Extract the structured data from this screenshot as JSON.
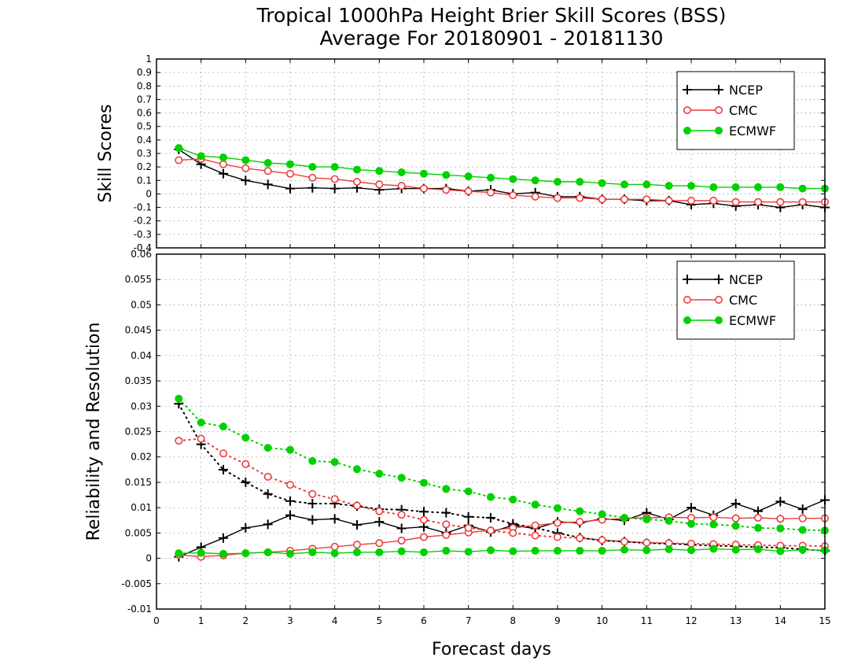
{
  "title_line1": "Tropical 1000hPa Height Brier Skill Scores (BSS)",
  "title_line2": "Average For 20180901 - 20181130",
  "xlabel": "Forecast days",
  "colors": {
    "NCEP": "#000000",
    "CMC": "#ee3b3b",
    "ECMWF": "#00d100"
  },
  "chart_data": [
    {
      "type": "line",
      "ylabel": "Skill Scores",
      "xlim": [
        0,
        15
      ],
      "ylim": [
        -0.4,
        1
      ],
      "x_ticks": [
        0,
        1,
        2,
        3,
        4,
        5,
        6,
        7,
        8,
        9,
        10,
        11,
        12,
        13,
        14,
        15
      ],
      "y_ticks": [
        "-0.4",
        "-0.3",
        "-0.2",
        "-0.1",
        "0",
        "0.1",
        "0.2",
        "0.3",
        "0.4",
        "0.5",
        "0.6",
        "0.7",
        "0.8",
        "0.9",
        "1"
      ],
      "grid": true,
      "legend_position": "top-right",
      "x": [
        0.5,
        1,
        1.5,
        2,
        2.5,
        3,
        3.5,
        4,
        4.5,
        5,
        5.5,
        6,
        6.5,
        7,
        7.5,
        8,
        8.5,
        9,
        9.5,
        10,
        10.5,
        11,
        11.5,
        12,
        12.5,
        13,
        13.5,
        14,
        14.5,
        15
      ],
      "series": [
        {
          "name": "NCEP",
          "marker": "plus",
          "style": "solid",
          "values": [
            0.33,
            0.22,
            0.15,
            0.1,
            0.07,
            0.04,
            0.045,
            0.04,
            0.045,
            0.03,
            0.04,
            0.04,
            0.04,
            0.02,
            0.03,
            0.0,
            0.01,
            -0.02,
            -0.02,
            -0.04,
            -0.04,
            -0.05,
            -0.05,
            -0.08,
            -0.07,
            -0.09,
            -0.08,
            -0.1,
            -0.08,
            -0.1
          ]
        },
        {
          "name": "CMC",
          "marker": "open-circle",
          "style": "solid",
          "values": [
            0.25,
            0.26,
            0.22,
            0.19,
            0.17,
            0.15,
            0.12,
            0.11,
            0.09,
            0.07,
            0.06,
            0.04,
            0.03,
            0.02,
            0.01,
            -0.01,
            -0.02,
            -0.03,
            -0.03,
            -0.04,
            -0.04,
            -0.04,
            -0.05,
            -0.05,
            -0.05,
            -0.06,
            -0.06,
            -0.06,
            -0.06,
            -0.06
          ]
        },
        {
          "name": "ECMWF",
          "marker": "filled-circle",
          "style": "solid",
          "values": [
            0.34,
            0.28,
            0.27,
            0.25,
            0.23,
            0.22,
            0.2,
            0.2,
            0.18,
            0.17,
            0.16,
            0.15,
            0.14,
            0.13,
            0.12,
            0.11,
            0.1,
            0.09,
            0.09,
            0.08,
            0.07,
            0.07,
            0.06,
            0.06,
            0.05,
            0.05,
            0.05,
            0.05,
            0.04,
            0.04
          ]
        }
      ]
    },
    {
      "type": "line",
      "ylabel": "Reliability and Resolution",
      "xlim": [
        0,
        15
      ],
      "ylim": [
        -0.01,
        0.06
      ],
      "x_ticks": [
        0,
        1,
        2,
        3,
        4,
        5,
        6,
        7,
        8,
        9,
        10,
        11,
        12,
        13,
        14,
        15
      ],
      "y_ticks": [
        "-0.01",
        "-0.005",
        "0",
        "0.005",
        "0.01",
        "0.015",
        "0.02",
        "0.025",
        "0.03",
        "0.035",
        "0.04",
        "0.045",
        "0.05",
        "0.055",
        "0.06"
      ],
      "grid": true,
      "legend_position": "top-right",
      "x": [
        0.5,
        1,
        1.5,
        2,
        2.5,
        3,
        3.5,
        4,
        4.5,
        5,
        5.5,
        6,
        6.5,
        7,
        7.5,
        8,
        8.5,
        9,
        9.5,
        10,
        10.5,
        11,
        11.5,
        12,
        12.5,
        13,
        13.5,
        14,
        14.5,
        15
      ],
      "series": [
        {
          "name": "NCEP",
          "marker": "plus",
          "style": "solid",
          "values": [
            0.0003,
            0.0022,
            0.004,
            0.006,
            0.0067,
            0.0085,
            0.0076,
            0.0078,
            0.0066,
            0.0072,
            0.0059,
            0.0062,
            0.005,
            0.0065,
            0.0052,
            0.0065,
            0.0059,
            0.0072,
            0.007,
            0.0078,
            0.0075,
            0.009,
            0.0077,
            0.01,
            0.0085,
            0.0108,
            0.0093,
            0.0112,
            0.0097,
            0.0115
          ]
        },
        {
          "name": "NCEP",
          "marker": "plus",
          "style": "dotted",
          "values": [
            0.0305,
            0.0225,
            0.0175,
            0.015,
            0.0127,
            0.0113,
            0.0108,
            0.0108,
            0.0103,
            0.0097,
            0.0096,
            0.0092,
            0.009,
            0.0082,
            0.008,
            0.0068,
            0.006,
            0.005,
            0.0041,
            0.0035,
            0.0033,
            0.003,
            0.0029,
            0.0027,
            0.0025,
            0.0024,
            0.0022,
            0.0021,
            0.0018,
            0.0015
          ]
        },
        {
          "name": "CMC",
          "marker": "open-circle",
          "style": "solid",
          "values": [
            0.0007,
            0.0003,
            0.0006,
            0.001,
            0.0012,
            0.0015,
            0.0019,
            0.0023,
            0.0027,
            0.003,
            0.0035,
            0.0042,
            0.0046,
            0.0051,
            0.0055,
            0.006,
            0.0065,
            0.007,
            0.0072,
            0.0076,
            0.0079,
            0.008,
            0.0081,
            0.008,
            0.0081,
            0.0079,
            0.008,
            0.0078,
            0.0079,
            0.0079
          ]
        },
        {
          "name": "CMC",
          "marker": "open-circle",
          "style": "dotted",
          "values": [
            0.0232,
            0.0236,
            0.0207,
            0.0186,
            0.0161,
            0.0145,
            0.0127,
            0.0117,
            0.0104,
            0.0093,
            0.0086,
            0.0076,
            0.0067,
            0.006,
            0.0055,
            0.005,
            0.0045,
            0.0042,
            0.004,
            0.0036,
            0.0033,
            0.0031,
            0.003,
            0.0029,
            0.0028,
            0.0027,
            0.0026,
            0.0025,
            0.0025,
            0.0024
          ]
        },
        {
          "name": "ECMWF",
          "marker": "filled-circle",
          "style": "solid",
          "values": [
            0.001,
            0.0011,
            0.0009,
            0.001,
            0.0012,
            0.0009,
            0.0012,
            0.001,
            0.0012,
            0.0012,
            0.0014,
            0.0012,
            0.0015,
            0.0013,
            0.0016,
            0.0014,
            0.0015,
            0.0015,
            0.0015,
            0.0015,
            0.0017,
            0.0016,
            0.0018,
            0.0016,
            0.0019,
            0.0017,
            0.0018,
            0.0014,
            0.0017,
            0.0016
          ]
        },
        {
          "name": "ECMWF",
          "marker": "filled-circle",
          "style": "dotted",
          "values": [
            0.0315,
            0.0268,
            0.026,
            0.0238,
            0.0218,
            0.0214,
            0.0192,
            0.019,
            0.0176,
            0.0167,
            0.0159,
            0.0149,
            0.0137,
            0.0132,
            0.0121,
            0.0116,
            0.0106,
            0.0099,
            0.0093,
            0.0087,
            0.008,
            0.0077,
            0.0074,
            0.0068,
            0.0067,
            0.0064,
            0.006,
            0.0059,
            0.0056,
            0.0055
          ]
        }
      ]
    }
  ]
}
